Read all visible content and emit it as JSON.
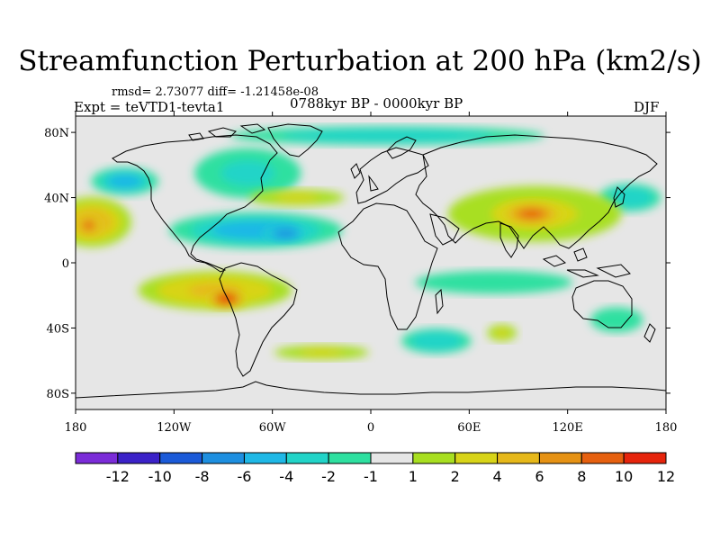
{
  "title": "Streamfunction Perturbation at 200 hPa (km2/s)",
  "stats": "rmsd= 2.73077 diff= -1.21458e-08",
  "experiment": "Expt = teVTD1-tevta1",
  "period": "0788kyr BP - 0000kyr BP",
  "season": "DJF",
  "map": {
    "projection": "cylindrical-equidistant",
    "lon_range": [
      -180,
      180
    ],
    "lat_range": [
      -90,
      90
    ],
    "lat_labels": [
      {
        "lat": 80,
        "label": "80N"
      },
      {
        "lat": 40,
        "label": "40N"
      },
      {
        "lat": 0,
        "label": "0"
      },
      {
        "lat": -40,
        "label": "40S"
      },
      {
        "lat": -80,
        "label": "80S"
      }
    ],
    "lon_labels": [
      {
        "lon": -180,
        "label": "180"
      },
      {
        "lon": -120,
        "label": "120W"
      },
      {
        "lon": -60,
        "label": "60W"
      },
      {
        "lon": 0,
        "label": "0"
      },
      {
        "lon": 60,
        "label": "60E"
      },
      {
        "lon": 120,
        "label": "120E"
      },
      {
        "lon": 180,
        "label": "180"
      }
    ],
    "background_color": "#e6e6e6",
    "features": [
      {
        "name": "nh-high-lat-band",
        "lon": 10,
        "lat": 78,
        "rx": 150,
        "ry": 9,
        "value": -2.5
      },
      {
        "name": "atlantic-negative",
        "lon": -70,
        "lat": 20,
        "rx": 62,
        "ry": 13,
        "value": -5
      },
      {
        "name": "atlantic-core",
        "lon": -52,
        "lat": 18,
        "rx": 16,
        "ry": 6,
        "value": -8
      },
      {
        "name": "na-arc-negative",
        "lon": -75,
        "lat": 55,
        "rx": 38,
        "ry": 18,
        "value": -3
      },
      {
        "name": "ne-pacific-negative",
        "lon": -150,
        "lat": 50,
        "rx": 24,
        "ry": 10,
        "value": -5
      },
      {
        "name": "nw-pacific-negative",
        "lon": 158,
        "lat": 40,
        "rx": 22,
        "ry": 10,
        "value": -4
      },
      {
        "name": "asia-positive",
        "lon": 100,
        "lat": 30,
        "rx": 62,
        "ry": 20,
        "value": 3
      },
      {
        "name": "asia-core",
        "lon": 98,
        "lat": 30,
        "rx": 24,
        "ry": 9,
        "value": 8
      },
      {
        "name": "pacific-positive",
        "lon": -170,
        "lat": 25,
        "rx": 28,
        "ry": 18,
        "value": 5
      },
      {
        "name": "pacific-core",
        "lon": -172,
        "lat": 23,
        "rx": 10,
        "ry": 8,
        "value": 8
      },
      {
        "name": "mid-lat-positive",
        "lon": -45,
        "lat": 40,
        "rx": 45,
        "ry": 8,
        "value": 2
      },
      {
        "name": "sa-positive",
        "lon": -95,
        "lat": -17,
        "rx": 55,
        "ry": 14,
        "value": 4
      },
      {
        "name": "sa-core",
        "lon": -88,
        "lat": -22,
        "rx": 14,
        "ry": 7,
        "value": 10
      },
      {
        "name": "tropical-negative",
        "lon": 75,
        "lat": -12,
        "rx": 75,
        "ry": 11,
        "value": -2
      },
      {
        "name": "so-negative",
        "lon": 40,
        "lat": -48,
        "rx": 25,
        "ry": 9,
        "value": -4
      },
      {
        "name": "so-positive",
        "lon": -30,
        "lat": -55,
        "rx": 45,
        "ry": 7,
        "value": 2
      },
      {
        "name": "so-positive-east",
        "lon": 80,
        "lat": -43,
        "rx": 14,
        "ry": 8,
        "value": 2
      },
      {
        "name": "west-pacific-negative-south",
        "lon": 150,
        "lat": -35,
        "rx": 25,
        "ry": 12,
        "value": -2
      }
    ]
  },
  "colorbar": {
    "colors": [
      "#7b2cd8",
      "#3b22c8",
      "#1b5ad8",
      "#1e8fe0",
      "#1fb8e6",
      "#22d4c8",
      "#2ee0a0",
      "#e6e6e6",
      "#a8df20",
      "#d8d418",
      "#e6b81a",
      "#e69214",
      "#e6600f",
      "#e6240c"
    ],
    "labels": [
      "-12",
      "-10",
      "-8",
      "-6",
      "-4",
      "-2",
      "-1",
      "1",
      "2",
      "4",
      "6",
      "8",
      "10",
      "12"
    ],
    "levels": [
      -12,
      -10,
      -8,
      -6,
      -4,
      -2,
      -1,
      1,
      2,
      4,
      6,
      8,
      10,
      12
    ]
  }
}
